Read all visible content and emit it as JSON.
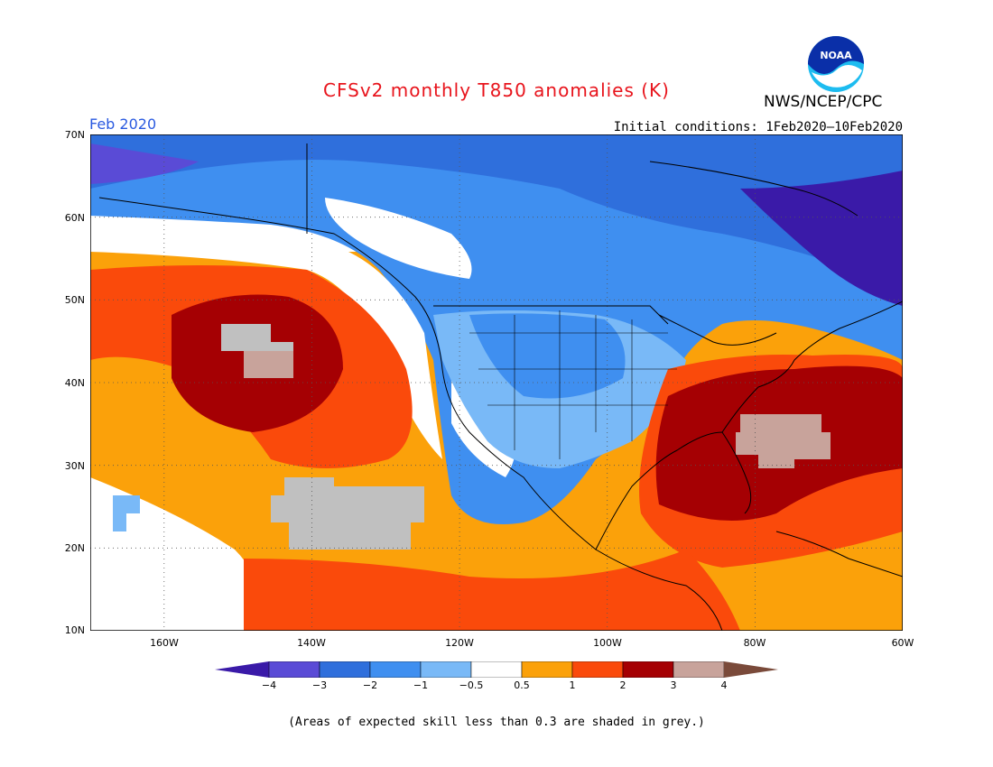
{
  "header": {
    "title": "CFSv2 monthly T850 anomalies (K)",
    "agency": "NWS/NCEP/CPC",
    "logo_text": "NOAA",
    "month": "Feb 2020",
    "initial_conditions": "Initial conditions: 1Feb2020–10Feb2020"
  },
  "map": {
    "projection": "cylindrical",
    "lon_range": [
      -170,
      -60
    ],
    "lat_range": [
      10,
      70
    ],
    "lat_labels": [
      "70N",
      "60N",
      "50N",
      "40N",
      "30N",
      "20N",
      "10N"
    ],
    "lon_labels": [
      "160W",
      "140W",
      "120W",
      "100W",
      "80W",
      "60W"
    ],
    "gridlines": "dotted"
  },
  "colorbar": {
    "tick_labels": [
      "−4",
      "−3",
      "−2",
      "−1",
      "−0.5",
      "0.5",
      "1",
      "2",
      "3",
      "4"
    ],
    "colors": [
      "#3a1aa8",
      "#5a4bd6",
      "#2f6fdc",
      "#3f8ff0",
      "#79b9f7",
      "#ffffff",
      "#fba10a",
      "#fa4a0b",
      "#a50003",
      "#c8a39b",
      "#7a4a3a"
    ]
  },
  "footnote": "(Areas of expected skill less than 0.3 are shaded in grey.)"
}
